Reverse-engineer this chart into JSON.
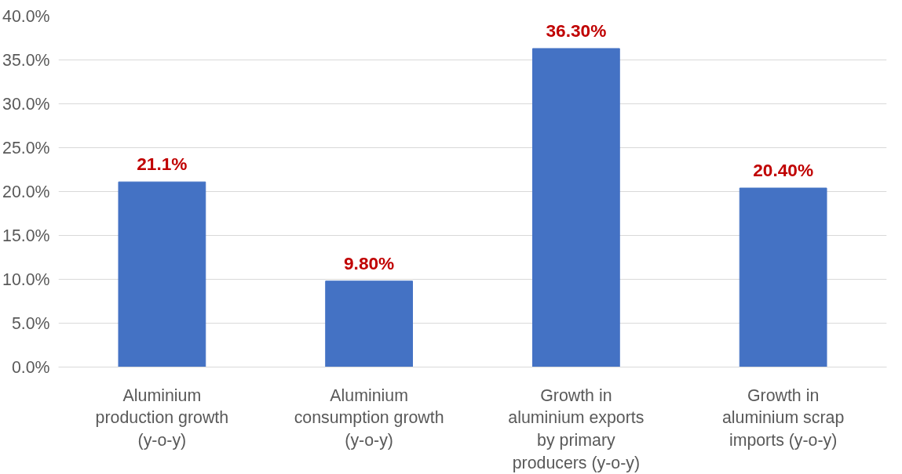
{
  "chart_data": {
    "type": "bar",
    "categories": [
      "Aluminium production growth (y-o-y)",
      "Aluminium consumption growth (y-o-y)",
      "Growth in aluminium exports by primary producers (y-o-y)",
      "Growth in aluminium scrap imports (y-o-y)"
    ],
    "values": [
      21.1,
      9.8,
      36.3,
      20.4
    ],
    "value_labels": [
      "21.1%",
      "9.80%",
      "36.30%",
      "20.40%"
    ],
    "color": "#4472c4",
    "ylim": [
      0,
      40
    ],
    "yticks": [
      {
        "value": 0,
        "label": "0.0%"
      },
      {
        "value": 5,
        "label": "5.0%"
      },
      {
        "value": 10,
        "label": "10.0%"
      },
      {
        "value": 15,
        "label": "15.0%"
      },
      {
        "value": 20,
        "label": "20.0%"
      },
      {
        "value": 25,
        "label": "25.0%"
      },
      {
        "value": 30,
        "label": "30.0%"
      },
      {
        "value": 35,
        "label": "35.0%"
      },
      {
        "value": 40,
        "label": "40.0%"
      }
    ],
    "grid": "y"
  }
}
